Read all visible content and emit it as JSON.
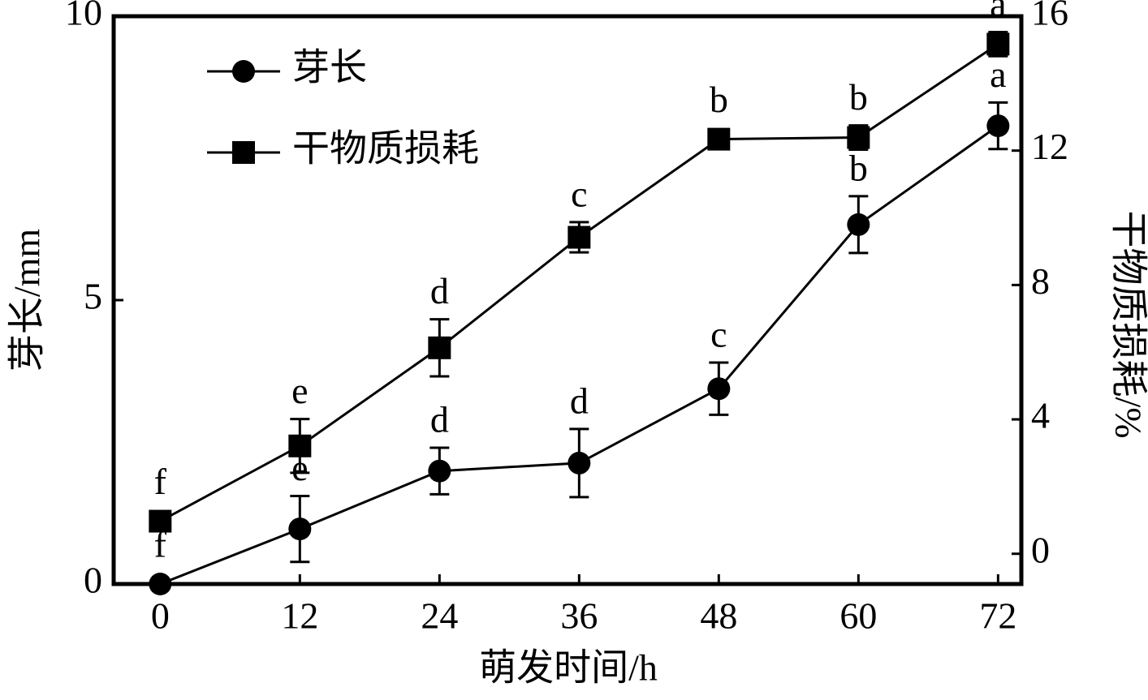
{
  "chart_data": {
    "type": "line",
    "xlabel": "萌发时间/h",
    "ylabel": "芽长/mm",
    "y2label": "干物质损耗/%",
    "x": [
      0,
      12,
      24,
      36,
      48,
      60,
      72
    ],
    "xlim": [
      -4,
      74
    ],
    "xticks": [
      0,
      12,
      24,
      36,
      48,
      60,
      72
    ],
    "ylim": [
      0,
      10
    ],
    "yticks": [
      0,
      5,
      10
    ],
    "y2lim": [
      -0.9,
      16
    ],
    "y2ticks": [
      0,
      4,
      8,
      12,
      16
    ],
    "legend": "upper left",
    "series": [
      {
        "name": "芽长",
        "color": "#000000",
        "marker": "circle",
        "values": [
          0,
          0.97,
          1.99,
          2.13,
          3.44,
          6.33,
          8.07
        ],
        "errors": [
          0,
          0.58,
          0.41,
          0.6,
          0.46,
          0.5,
          0.41
        ],
        "letters": [
          "f",
          "e",
          "d",
          "d",
          "c",
          "b",
          "a"
        ]
      },
      {
        "name": "干物质损耗",
        "color": "#000000",
        "marker": "square",
        "axis": "y2",
        "values": [
          0.97,
          3.21,
          6.13,
          9.42,
          12.34,
          12.39,
          15.17
        ],
        "errors": [
          0.2,
          0.8,
          0.85,
          0.45,
          0.2,
          0.36,
          0.36
        ],
        "letters": [
          "f",
          "e",
          "d",
          "c",
          "b",
          "b",
          "a"
        ]
      }
    ]
  }
}
